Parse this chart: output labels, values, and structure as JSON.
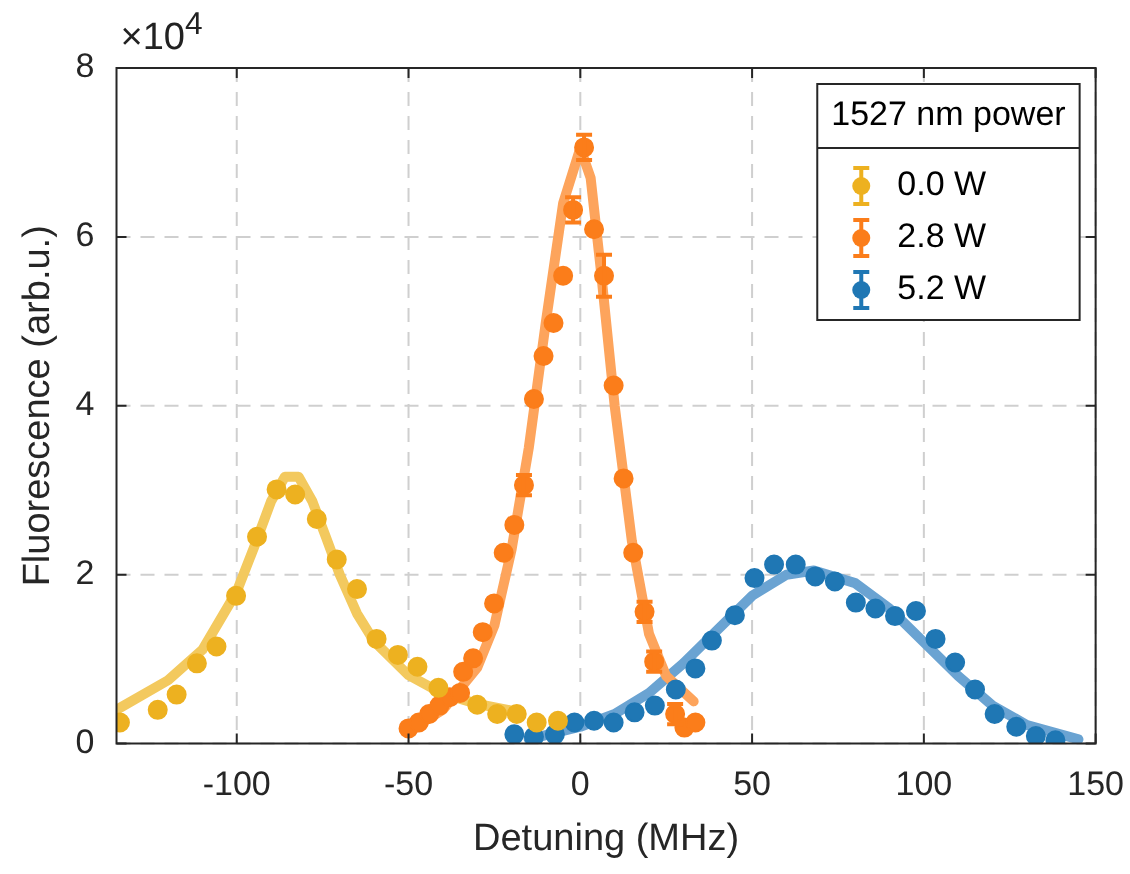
{
  "chart_data": {
    "type": "scatter",
    "xlabel": "Detuning (MHz)",
    "ylabel": "Fluorescence (arb.u.)",
    "legend_title": "1527 nm power",
    "legend": "top right",
    "grid": true,
    "xlim": [
      -135,
      150
    ],
    "xticks": [
      -100,
      -50,
      0,
      50,
      100,
      150
    ],
    "ylim": [
      0,
      8
    ],
    "yticks": [
      0,
      2,
      4,
      6,
      8
    ],
    "annotations": [
      "×10$^{4}$"
    ],
    "series": [
      {
        "type": "line",
        "color": "#f3c95e",
        "line_style": "solid",
        "marker": "none",
        "x": [
          -135,
          -120,
          -110,
          -100,
          -95,
          -90,
          -86,
          -82,
          -78,
          -74,
          -70,
          -65,
          -60,
          -50,
          -40,
          -30,
          -20
        ],
        "values": [
          0.4,
          0.75,
          1.11,
          1.8,
          2.32,
          2.87,
          3.16,
          3.16,
          2.87,
          2.44,
          2.0,
          1.54,
          1.21,
          0.81,
          0.59,
          0.47,
          0.39
        ]
      },
      {
        "type": "line",
        "color": "#fda45c",
        "line_style": "solid",
        "marker": "none",
        "x": [
          -50,
          -40,
          -30,
          -25,
          -20,
          -15,
          -10,
          -5,
          0,
          3,
          6,
          10,
          15,
          20,
          25,
          33
        ],
        "values": [
          0.15,
          0.4,
          0.9,
          1.4,
          2.3,
          3.5,
          5.0,
          6.4,
          7.05,
          6.7,
          5.6,
          4.0,
          2.4,
          1.3,
          0.8,
          0.5
        ]
      },
      {
        "type": "line",
        "color": "#6aa3d2",
        "line_style": "solid",
        "marker": "none",
        "x": [
          -15,
          0,
          10,
          20,
          30,
          40,
          50,
          60,
          68,
          80,
          90,
          100,
          110,
          120,
          130,
          145
        ],
        "values": [
          0.05,
          0.2,
          0.35,
          0.6,
          0.95,
          1.35,
          1.75,
          2.0,
          2.05,
          1.9,
          1.6,
          1.2,
          0.8,
          0.45,
          0.22,
          0.05
        ]
      },
      {
        "name": "0.0 W",
        "color": "#edb120",
        "marker": "circle",
        "x": [
          -134,
          -123,
          -117.5,
          -111.6,
          -105.9,
          -100.2,
          -94.1,
          -88.4,
          -83,
          -76.7,
          -70.9,
          -65,
          -59.3,
          -53.1,
          -47.4,
          -41.3,
          -30,
          -24.2,
          -18.5,
          -12.7,
          -6.5
        ],
        "values": [
          0.25,
          0.4,
          0.58,
          0.95,
          1.15,
          1.75,
          2.45,
          3.01,
          2.95,
          2.66,
          2.18,
          1.83,
          1.24,
          1.05,
          0.91,
          0.66,
          0.46,
          0.35,
          0.35,
          0.25,
          0.27
        ]
      },
      {
        "name": "2.8 W",
        "color": "#fb7d1a",
        "marker": "circle",
        "x": [
          -50,
          -47,
          -44,
          -41,
          -38,
          -35,
          -34.1,
          -31.2,
          -28.4,
          -25.1,
          -22.3,
          -19.2,
          -16.4,
          -13.5,
          -10.7,
          -7.8,
          -5,
          -2.1,
          1.1,
          4,
          6.9,
          9.7,
          12.6,
          15.4,
          18.7,
          21.5,
          27.6,
          30.3,
          33.5
        ],
        "values": [
          0.18,
          0.25,
          0.35,
          0.45,
          0.55,
          0.6,
          0.85,
          1.01,
          1.32,
          1.66,
          2.26,
          2.59,
          3.06,
          4.08,
          4.59,
          4.98,
          5.54,
          6.32,
          7.06,
          6.09,
          5.54,
          4.24,
          3.14,
          2.26,
          1.56,
          0.97,
          0.35,
          0.19,
          0.25
        ],
        "errors": [
          null,
          null,
          null,
          null,
          null,
          null,
          null,
          null,
          null,
          null,
          null,
          null,
          0.12,
          null,
          null,
          null,
          null,
          0.15,
          0.15,
          null,
          0.25,
          null,
          null,
          null,
          0.12,
          0.12,
          0.12,
          null,
          null
        ]
      },
      {
        "name": "5.2 W",
        "color": "#1f77b4",
        "marker": "circle",
        "x": [
          -19.2,
          -13.5,
          -7.4,
          -1.7,
          4,
          9.7,
          15.8,
          21.7,
          27.8,
          33.5,
          38.3,
          45,
          50.7,
          56.4,
          62.7,
          68.4,
          74.1,
          80.2,
          85.9,
          91.6,
          97.7,
          103.4,
          109.1,
          114.9,
          120.6,
          126.9,
          132.6,
          138.3
        ],
        "values": [
          0.11,
          0.08,
          0.11,
          0.25,
          0.27,
          0.25,
          0.37,
          0.45,
          0.64,
          0.89,
          1.22,
          1.52,
          1.96,
          2.12,
          2.12,
          1.98,
          1.92,
          1.67,
          1.6,
          1.51,
          1.57,
          1.24,
          0.96,
          0.64,
          0.35,
          0.2,
          0.09,
          0.04
        ]
      }
    ]
  }
}
